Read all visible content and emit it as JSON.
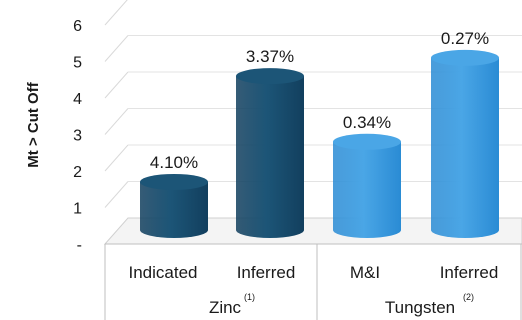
{
  "chart_data": {
    "type": "bar",
    "ylabel": "Mt > Cut Off",
    "ylim": [
      0,
      6
    ],
    "y_ticks": [
      "-",
      "1",
      "2",
      "3",
      "4",
      "5",
      "6"
    ],
    "grid": true,
    "legend": "none",
    "categories": [
      "Indicated",
      "Inferred",
      "M&I",
      "Inferred"
    ],
    "groups": [
      {
        "label": "Zinc",
        "note": "(1)",
        "span": [
          0,
          1
        ]
      },
      {
        "label": "Tungsten",
        "note": "(2)",
        "span": [
          2,
          3
        ]
      }
    ],
    "values": [
      1.7,
      4.6,
      2.8,
      5.1
    ],
    "data_labels": [
      "4.10%",
      "3.37%",
      "0.34%",
      "0.27%"
    ],
    "colors": [
      "#123f5e",
      "#123f5e",
      "#2a8bd4",
      "#2a8bd4"
    ],
    "cap_colors": [
      "#1c5577",
      "#1c5577",
      "#4aa6e6",
      "#4aa6e6"
    ]
  }
}
